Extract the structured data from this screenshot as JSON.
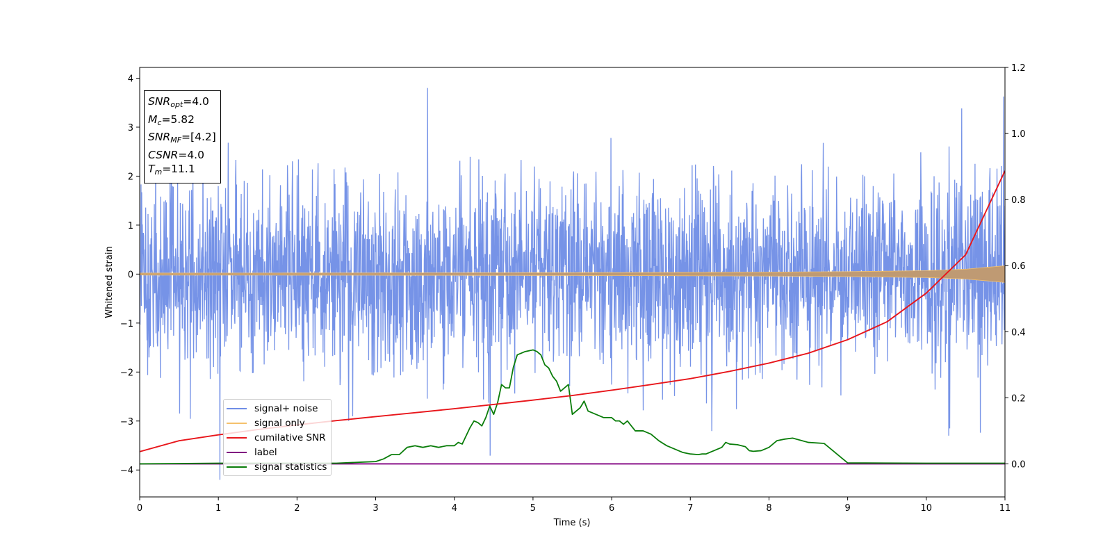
{
  "chart_data": {
    "type": "line",
    "xlabel": "Time (s)",
    "ylabel": "Whitened strain",
    "xlim": [
      0,
      11
    ],
    "ylim": [
      -4.55,
      4.22
    ],
    "y2lim": [
      -0.1,
      1.2
    ],
    "x_ticks": [
      "0",
      "1",
      "2",
      "3",
      "4",
      "5",
      "6",
      "7",
      "8",
      "9",
      "10",
      "11"
    ],
    "y_ticks": [
      "4",
      "3",
      "2",
      "1",
      "0",
      "−1",
      "−2",
      "−3",
      "−4"
    ],
    "y2_ticks": [
      "1.2",
      "1.0",
      "0.8",
      "0.6",
      "0.4",
      "0.2",
      "0.0"
    ],
    "legend_position": "lower-left",
    "colors": {
      "signal_noise": "#6f8de6",
      "signal_only": "#f5c16c",
      "signal_only_fill": "#bf9a73",
      "cumulative_snr": "#e8161b",
      "label": "#800080",
      "signal_statistics": "#0a7d0a"
    },
    "series": [
      {
        "name": "signal+ noise",
        "axis": "left",
        "description_values": {
          "typical_band": [
            -2.0,
            2.0
          ],
          "max": 3.8,
          "min": -4.2
        }
      },
      {
        "name": "signal only",
        "axis": "left",
        "x": [
          0,
          2,
          4,
          6,
          8,
          9,
          10,
          10.5,
          11
        ],
        "amplitude": [
          0.02,
          0.022,
          0.025,
          0.03,
          0.04,
          0.05,
          0.07,
          0.1,
          0.17
        ]
      },
      {
        "name": "cumilative SNR",
        "axis": "right",
        "x": [
          0,
          0.5,
          1,
          1.5,
          2,
          2.5,
          3,
          3.5,
          4,
          4.5,
          5,
          5.5,
          6,
          6.5,
          7,
          7.5,
          8,
          8.5,
          9,
          9.5,
          10,
          10.5,
          11
        ],
        "y": [
          0.037,
          0.07,
          0.088,
          0.104,
          0.118,
          0.131,
          0.143,
          0.155,
          0.167,
          0.18,
          0.193,
          0.207,
          0.223,
          0.24,
          0.258,
          0.28,
          0.305,
          0.335,
          0.376,
          0.43,
          0.517,
          0.633,
          0.887
        ]
      },
      {
        "name": "label",
        "axis": "right",
        "x": [
          0,
          11
        ],
        "y": [
          0.0,
          0.0
        ]
      },
      {
        "name": "signal statistics",
        "axis": "right",
        "x": [
          0,
          1,
          2,
          2.5,
          2.8,
          3.0,
          3.1,
          3.2,
          3.3,
          3.4,
          3.5,
          3.6,
          3.7,
          3.8,
          3.9,
          4.0,
          4.05,
          4.1,
          4.15,
          4.2,
          4.25,
          4.3,
          4.35,
          4.4,
          4.45,
          4.5,
          4.55,
          4.6,
          4.65,
          4.7,
          4.75,
          4.8,
          4.9,
          5.0,
          5.05,
          5.1,
          5.15,
          5.2,
          5.25,
          5.3,
          5.35,
          5.45,
          5.5,
          5.6,
          5.65,
          5.7,
          5.8,
          5.9,
          6.0,
          6.05,
          6.1,
          6.15,
          6.2,
          6.3,
          6.4,
          6.5,
          6.6,
          6.7,
          6.8,
          6.9,
          7.0,
          7.1,
          7.15,
          7.2,
          7.3,
          7.4,
          7.45,
          7.5,
          7.6,
          7.7,
          7.75,
          7.8,
          7.9,
          8.0,
          8.1,
          8.2,
          8.3,
          8.5,
          8.7,
          9.0,
          10.0,
          11.0
        ],
        "y": [
          0.0,
          0.002,
          0.002,
          0.002,
          0.005,
          0.007,
          0.015,
          0.028,
          0.028,
          0.05,
          0.055,
          0.05,
          0.055,
          0.05,
          0.055,
          0.055,
          0.065,
          0.06,
          0.085,
          0.11,
          0.13,
          0.125,
          0.115,
          0.14,
          0.175,
          0.15,
          0.185,
          0.24,
          0.23,
          0.23,
          0.292,
          0.33,
          0.34,
          0.345,
          0.34,
          0.33,
          0.3,
          0.29,
          0.265,
          0.25,
          0.22,
          0.24,
          0.15,
          0.17,
          0.19,
          0.16,
          0.15,
          0.14,
          0.14,
          0.13,
          0.13,
          0.12,
          0.13,
          0.1,
          0.1,
          0.09,
          0.07,
          0.055,
          0.045,
          0.035,
          0.03,
          0.028,
          0.03,
          0.03,
          0.04,
          0.05,
          0.065,
          0.06,
          0.058,
          0.052,
          0.04,
          0.038,
          0.04,
          0.05,
          0.07,
          0.075,
          0.078,
          0.065,
          0.062,
          0.003,
          0.002,
          0.002
        ]
      }
    ]
  },
  "params": {
    "snr_opt_base": "SNR",
    "snr_opt_sub": "opt",
    "snr_opt_val": "=4.0",
    "mc_base": "M",
    "mc_sub": "c",
    "mc_val": "=5.82",
    "snr_mf_base": "SNR",
    "snr_mf_sub": "MF",
    "snr_mf_val": "=[4.2]",
    "csnr_base": "CSNR",
    "csnr_val": "=4.0",
    "tm_base": "T",
    "tm_sub": "m",
    "tm_val": "=11.1"
  }
}
